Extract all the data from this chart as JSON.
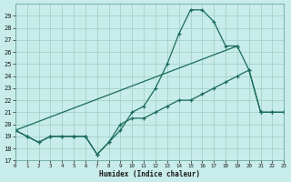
{
  "title": "",
  "xlabel": "Humidex (Indice chaleur)",
  "background_color": "#c8ece9",
  "grid_color": "#9ecdc5",
  "line_color": "#1a6b5a",
  "line1_x": [
    0,
    1,
    2,
    3,
    4,
    5,
    6,
    7,
    8,
    9,
    10,
    11,
    12,
    13,
    14,
    15,
    16,
    17,
    18,
    19
  ],
  "line1_y": [
    19.5,
    19.0,
    18.5,
    19.0,
    19.0,
    19.0,
    19.0,
    17.5,
    18.5,
    19.5,
    21.0,
    21.5,
    23.0,
    25.0,
    27.5,
    29.5,
    29.5,
    28.5,
    26.5,
    26.5
  ],
  "line2_x": [
    0,
    19,
    20,
    21,
    22,
    23
  ],
  "line2_y": [
    19.5,
    26.5,
    24.5,
    21.0,
    21.0,
    21.0
  ],
  "line3_x": [
    0,
    1,
    2,
    3,
    4,
    5,
    6,
    7,
    8,
    9,
    10,
    11,
    12,
    13,
    14,
    15,
    16,
    17,
    18,
    19,
    20,
    21,
    22,
    23
  ],
  "line3_y": [
    19.5,
    19.0,
    18.5,
    19.0,
    19.0,
    19.0,
    19.0,
    17.5,
    18.5,
    20.0,
    20.5,
    20.5,
    21.0,
    21.5,
    22.0,
    22.0,
    22.5,
    23.0,
    23.5,
    24.0,
    24.5,
    21.0,
    21.0,
    21.0
  ],
  "xlim": [
    0,
    23
  ],
  "ylim": [
    17,
    30
  ],
  "yticks": [
    17,
    18,
    19,
    20,
    21,
    22,
    23,
    24,
    25,
    26,
    27,
    28,
    29
  ],
  "xticks": [
    0,
    1,
    2,
    3,
    4,
    5,
    6,
    7,
    8,
    9,
    10,
    11,
    12,
    13,
    14,
    15,
    16,
    17,
    18,
    19,
    20,
    21,
    22,
    23
  ]
}
